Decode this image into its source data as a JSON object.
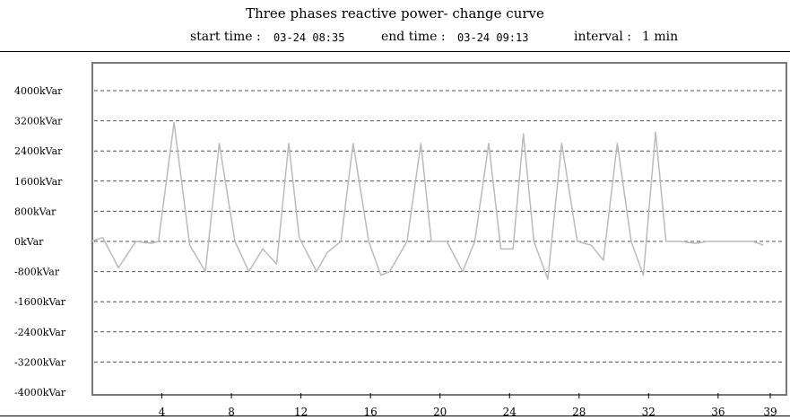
{
  "header": {
    "title": "Three phases reactive power- change curve",
    "start_label": "start time :",
    "start_value": "03-24  08:35",
    "end_label": "end time :",
    "end_value": "03-24  09:13",
    "interval_label": "interval :",
    "interval_value": "1 min"
  },
  "colors": {
    "line": "#bbbbbb",
    "grid": "#555555",
    "axis": "#777777"
  },
  "chart_data": {
    "type": "line",
    "title": "Three phases reactive power- change curve",
    "xlabel": "",
    "ylabel": "",
    "xlim": [
      0,
      39
    ],
    "ylim": [
      -4000,
      4000
    ],
    "y_ticks": [
      4000,
      3200,
      2400,
      1600,
      800,
      0,
      -800,
      -1600,
      -2400,
      -3200,
      -4000
    ],
    "y_tick_labels": [
      "4000kVar",
      "3200kVar",
      "2400kVar",
      "1600kVar",
      "800kVar",
      "0kVar",
      "-800kVar",
      "-1600kVar",
      "-2400kVar",
      "-3200kVar",
      "-4000kVar"
    ],
    "x_ticks": [
      4,
      8,
      12,
      16,
      20,
      24,
      28,
      32,
      36,
      39
    ],
    "x_tick_labels": [
      "4",
      "8",
      "12",
      "16",
      "20",
      "24",
      "28",
      "32",
      "36",
      "39"
    ],
    "grid": true,
    "series": [
      {
        "x": [
          -0.1,
          0.6,
          1.5,
          2.5,
          3.4,
          3.8,
          4.7,
          5.6,
          6.5,
          7.3,
          8.2,
          9.0,
          9.8,
          10.6,
          11.3,
          11.9,
          12.9,
          13.5,
          14.3,
          15.0,
          15.9,
          16.6,
          17.1,
          18.1,
          18.9,
          19.5,
          20.4,
          21.3,
          22.0,
          22.8,
          23.5,
          24.2,
          24.8,
          25.4,
          26.2,
          27.0,
          27.9,
          28.7,
          29.4,
          30.2,
          31.0,
          31.7,
          32.4,
          33.0,
          33.8,
          34.7,
          35.4,
          36.2,
          36.8,
          37.7,
          38.0,
          38.6
        ],
        "y": [
          0,
          100,
          -700,
          0,
          -50,
          0,
          3150,
          -100,
          -800,
          2600,
          0,
          -800,
          -200,
          -600,
          2600,
          100,
          -800,
          -300,
          0,
          2600,
          0,
          -900,
          -800,
          0,
          2600,
          0,
          0,
          -800,
          0,
          2600,
          -200,
          -200,
          2850,
          0,
          -1000,
          2600,
          0,
          -100,
          -500,
          2600,
          0,
          -900,
          2900,
          0,
          0,
          -50,
          0,
          0,
          0,
          0,
          0,
          -100
        ]
      }
    ]
  }
}
